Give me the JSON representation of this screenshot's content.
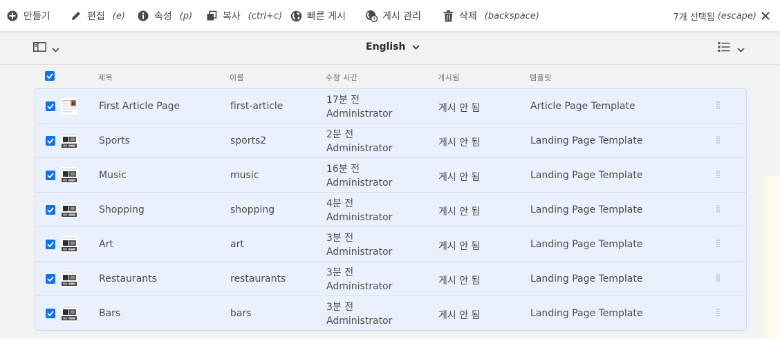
{
  "actionbar": {
    "create": {
      "label": "만들기"
    },
    "edit": {
      "label": "편집",
      "hint": "(e)"
    },
    "properties": {
      "label": "속성",
      "hint": "(p)"
    },
    "copy": {
      "label": "복사",
      "hint": "(ctrl+c)"
    },
    "quick_publish": {
      "label": "빠른 게시"
    },
    "manage_publication": {
      "label": "게시 관리"
    },
    "delete": {
      "label": "삭제",
      "hint": "(backspace)"
    },
    "selection": {
      "label": "7개 선택됨",
      "hint": "(escape)"
    }
  },
  "subbar": {
    "language": "English"
  },
  "columns": {
    "title": "제목",
    "name": "이름",
    "modified": "수정 시간",
    "published": "게시됨",
    "template": "템플릿"
  },
  "rows": [
    {
      "title": "First Article Page",
      "name": "first-article",
      "modified_ago": "17분 전",
      "modified_by": "Administrator",
      "published": "게시 안 됨",
      "template": "Article Page Template",
      "thumb": "article-thumbnail",
      "checked": true
    },
    {
      "title": "Sports",
      "name": "sports2",
      "modified_ago": "2분 전",
      "modified_by": "Administrator",
      "published": "게시 안 됨",
      "template": "Landing Page Template",
      "thumb": "landing-thumbnail",
      "checked": true
    },
    {
      "title": "Music",
      "name": "music",
      "modified_ago": "16분 전",
      "modified_by": "Administrator",
      "published": "게시 안 됨",
      "template": "Landing Page Template",
      "thumb": "landing-thumbnail",
      "checked": true
    },
    {
      "title": "Shopping",
      "name": "shopping",
      "modified_ago": "4분 전",
      "modified_by": "Administrator",
      "published": "게시 안 됨",
      "template": "Landing Page Template",
      "thumb": "landing-thumbnail",
      "checked": true
    },
    {
      "title": "Art",
      "name": "art",
      "modified_ago": "3분 전",
      "modified_by": "Administrator",
      "published": "게시 안 됨",
      "template": "Landing Page Template",
      "thumb": "landing-thumbnail",
      "checked": true
    },
    {
      "title": "Restaurants",
      "name": "restaurants",
      "modified_ago": "3분 전",
      "modified_by": "Administrator",
      "published": "게시 안 됨",
      "template": "Landing Page Template",
      "thumb": "landing-thumbnail",
      "checked": true
    },
    {
      "title": "Bars",
      "name": "bars",
      "modified_ago": "3분 전",
      "modified_by": "Administrator",
      "published": "게시 안 됨",
      "template": "Landing Page Template",
      "thumb": "landing-thumbnail",
      "checked": true
    }
  ],
  "colors": {
    "selected_row": "#ebf1fc",
    "checkbox_accent": "#1473e6",
    "text": "#4b4b4b"
  }
}
